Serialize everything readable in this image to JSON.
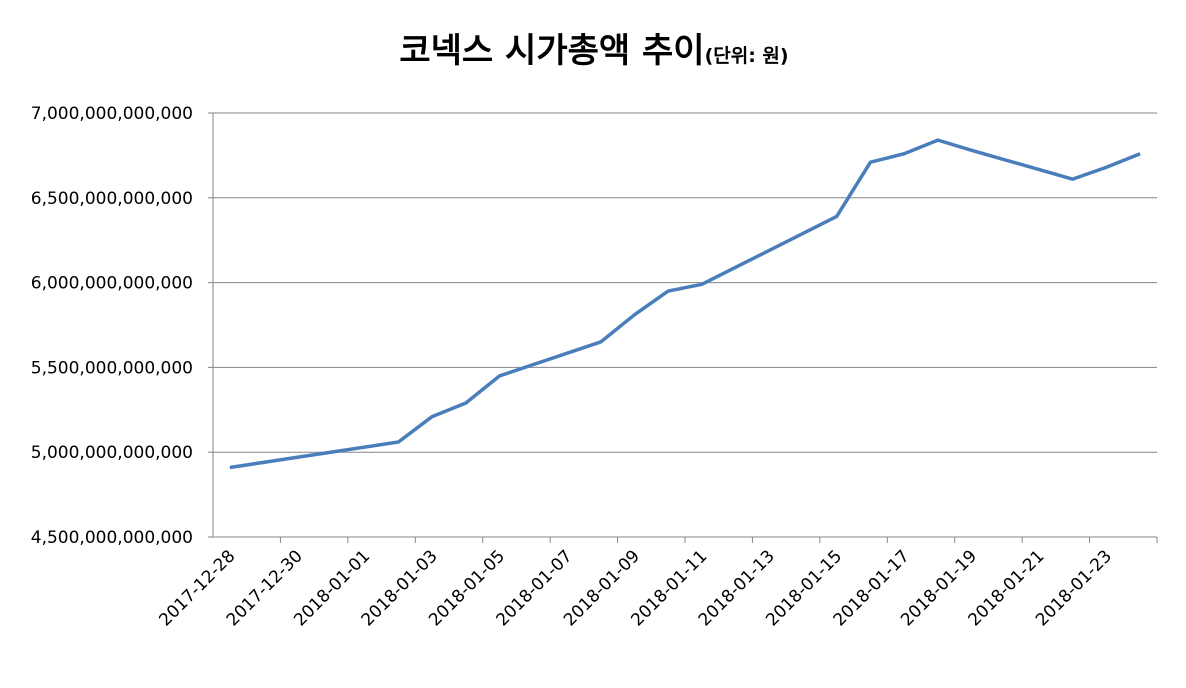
{
  "chart_data": {
    "type": "line",
    "title": "코넥스 시가총액 추이",
    "subtitle": "(단위: 원)",
    "x": [
      "2017-12-28",
      "2018-01-02",
      "2018-01-03",
      "2018-01-04",
      "2018-01-05",
      "2018-01-08",
      "2018-01-09",
      "2018-01-10",
      "2018-01-11",
      "2018-01-12",
      "2018-01-15",
      "2018-01-16",
      "2018-01-17",
      "2018-01-18",
      "2018-01-19",
      "2018-01-22",
      "2018-01-23",
      "2018-01-24"
    ],
    "series": [
      {
        "name": "시가총액",
        "color": "#4a7ebb",
        "values": [
          4910000000000,
          5060000000000,
          5210000000000,
          5290000000000,
          5450000000000,
          5650000000000,
          5810000000000,
          5950000000000,
          5990000000000,
          6090000000000,
          6390000000000,
          6710000000000,
          6760000000000,
          6840000000000,
          6780000000000,
          6610000000000,
          6680000000000,
          6760000000000
        ]
      }
    ],
    "xlim": [
      "2017-12-28",
      "2018-01-24"
    ],
    "xticks": [
      "2017-12-28",
      "2017-12-30",
      "2018-01-01",
      "2018-01-03",
      "2018-01-05",
      "2018-01-07",
      "2018-01-09",
      "2018-01-11",
      "2018-01-13",
      "2018-01-15",
      "2018-01-17",
      "2018-01-19",
      "2018-01-21",
      "2018-01-23"
    ],
    "ylim": [
      4500000000000,
      7000000000000
    ],
    "yticks": [
      {
        "value": 4500000000000,
        "label": "4,500,000,000,000"
      },
      {
        "value": 5000000000000,
        "label": "5,000,000,000,000"
      },
      {
        "value": 5500000000000,
        "label": "5,500,000,000,000"
      },
      {
        "value": 6000000000000,
        "label": "6,000,000,000,000"
      },
      {
        "value": 6500000000000,
        "label": "6,500,000,000,000"
      },
      {
        "value": 7000000000000,
        "label": "7,000,000,000,000"
      }
    ],
    "grid": true
  }
}
